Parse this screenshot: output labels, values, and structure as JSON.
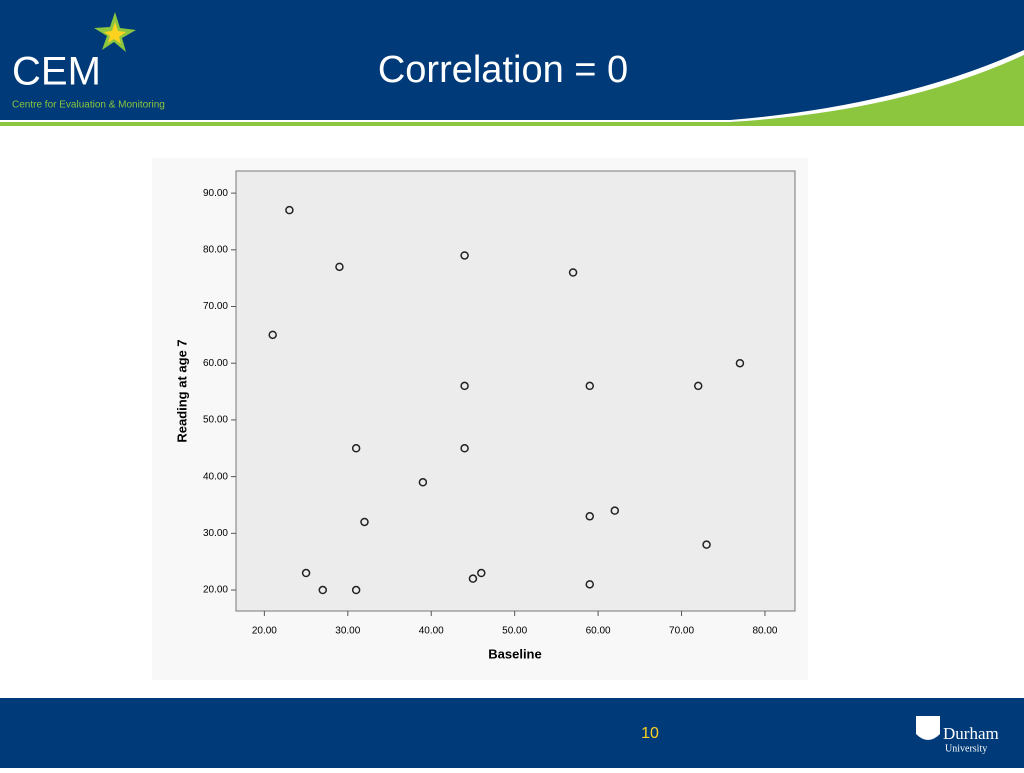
{
  "header": {
    "logo": "CEM",
    "logo_subtitle": "Centre for Evaluation & Monitoring",
    "title": "Correlation = 0"
  },
  "footer": {
    "page_number": "10",
    "university_name": "Durham",
    "university_word": "University"
  },
  "chart_data": {
    "type": "scatter",
    "xlabel": "Baseline",
    "ylabel": "Reading at age 7",
    "x": [
      23,
      29,
      44,
      57,
      21,
      77,
      44,
      59,
      72,
      31,
      44,
      39,
      32,
      59,
      62,
      73,
      25,
      27,
      31,
      45,
      46,
      59
    ],
    "y": [
      87,
      77,
      79,
      76,
      65,
      60,
      56,
      56,
      56,
      45,
      45,
      39,
      32,
      33,
      34,
      28,
      23,
      20,
      20,
      22,
      23,
      21
    ],
    "marker_color": "#222222",
    "xlim": [
      16.6,
      83.6
    ],
    "ylim": [
      16.3,
      93.9
    ],
    "xticks": [
      {
        "value": 20,
        "label": "20.00"
      },
      {
        "value": 30,
        "label": "30.00"
      },
      {
        "value": 40,
        "label": "40.00"
      },
      {
        "value": 50,
        "label": "50.00"
      },
      {
        "value": 60,
        "label": "60.00"
      },
      {
        "value": 70,
        "label": "70.00"
      },
      {
        "value": 80,
        "label": "80.00"
      }
    ],
    "yticks": [
      {
        "value": 20,
        "label": "20.00"
      },
      {
        "value": 30,
        "label": "30.00"
      },
      {
        "value": 40,
        "label": "40.00"
      },
      {
        "value": 50,
        "label": "50.00"
      },
      {
        "value": 60,
        "label": "60.00"
      },
      {
        "value": 70,
        "label": "70.00"
      },
      {
        "value": 80,
        "label": "80.00"
      },
      {
        "value": 90,
        "label": "90.00"
      }
    ]
  }
}
